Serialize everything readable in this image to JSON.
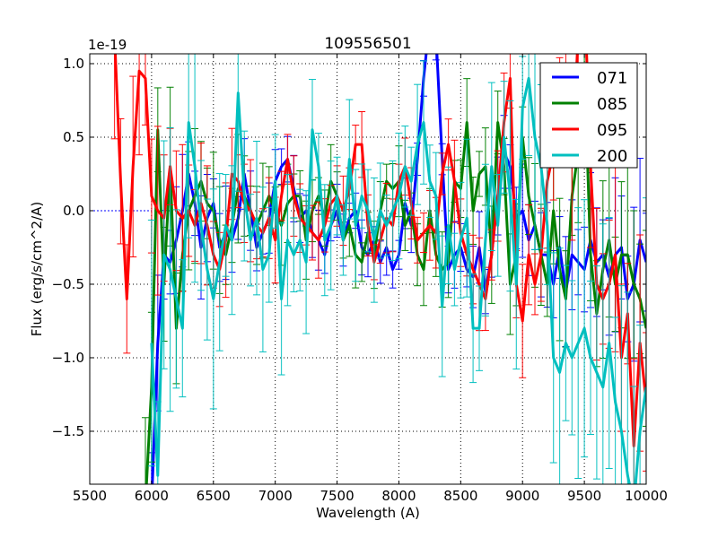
{
  "chart_data": {
    "type": "line",
    "title": "109556501",
    "xlabel": "Wavelength (A)",
    "ylabel": "Flux (erg/s/cm^2/A)",
    "y_scale_label": "1e-19",
    "xlim": [
      5500,
      10000
    ],
    "ylim": [
      -1.86,
      1.067
    ],
    "grid": true,
    "legend_position": "top-right",
    "x_ticks": [
      5500,
      6000,
      6500,
      7000,
      7500,
      8000,
      8500,
      9000,
      9500,
      10000
    ],
    "x_tick_labels": [
      "5500",
      "6000",
      "6500",
      "7000",
      "7500",
      "8000",
      "8500",
      "9000",
      "9500",
      "10000"
    ],
    "y_ticks": [
      1.0,
      0.5,
      0.0,
      -0.5,
      -1.0,
      -1.5
    ],
    "y_tick_labels": [
      "1.0",
      "0.5",
      "0.0",
      "−0.5",
      "−1.0",
      "−1.5"
    ],
    "series": [
      {
        "name": "071",
        "color": "#0000ff",
        "x_start": 6000,
        "x_step": 50,
        "values": [
          -2.0,
          -0.9,
          -0.3,
          -0.35,
          -0.2,
          0.0,
          0.25,
          0.05,
          -0.25,
          -0.05,
          0.05,
          -0.25,
          -0.15,
          -0.2,
          -0.05,
          0.25,
          0.0,
          -0.25,
          -0.15,
          -0.05,
          0.2,
          0.3,
          0.35,
          0.15,
          -0.05,
          0.0,
          -0.15,
          -0.2,
          -0.3,
          -0.1,
          0.0,
          -0.2,
          -0.05,
          0.0,
          -0.25,
          -0.3,
          -0.2,
          -0.35,
          -0.25,
          -0.4,
          -0.3,
          0.05,
          -0.1,
          0.35,
          0.9,
          1.3,
          1.2,
          0.35,
          -0.4,
          -0.3,
          -0.25,
          -0.4,
          -0.45,
          -0.25,
          -0.55,
          -0.3,
          0.1,
          0.4,
          0.3,
          -0.05,
          0.0,
          -0.2,
          -0.1,
          -0.3,
          -0.3,
          -0.5,
          -0.25,
          -0.55,
          -0.3,
          -0.35,
          -0.4,
          -0.2,
          -0.35,
          -0.3,
          -0.45,
          -0.3,
          -0.25,
          -0.6,
          -0.5,
          -0.2,
          -0.35
        ],
        "error": 0.2
      },
      {
        "name": "085",
        "color": "#008000",
        "x_start": 5950,
        "x_step": 50,
        "values": [
          -2.0,
          -1.2,
          0.55,
          -0.5,
          0.3,
          -0.8,
          -0.3,
          0.0,
          0.1,
          0.2,
          0.05,
          0.0,
          -0.2,
          -0.3,
          -0.1,
          0.15,
          0.1,
          0.0,
          -0.1,
          0.0,
          0.1,
          0.0,
          -0.1,
          0.05,
          0.1,
          0.1,
          -0.2,
          0.0,
          0.1,
          -0.05,
          0.2,
          0.1,
          -0.2,
          -0.1,
          -0.3,
          -0.35,
          -0.15,
          -0.3,
          0.0,
          0.2,
          0.15,
          0.2,
          -0.1,
          0.0,
          -0.3,
          -0.4,
          0.0,
          -0.3,
          -0.4,
          -0.35,
          0.2,
          0.15,
          0.6,
          0.0,
          0.25,
          0.3,
          -0.3,
          0.6,
          0.3,
          -0.5,
          -0.3,
          0.5,
          0.1,
          -0.1,
          -0.3,
          -0.5,
          0.0,
          -0.4,
          -0.6,
          0.1,
          0.4,
          1.0,
          -0.3,
          -0.7,
          -0.4,
          -0.2,
          -0.5,
          -0.3,
          -0.3,
          -0.5,
          -0.6,
          -0.8
        ],
        "error": 0.25
      },
      {
        "name": "095",
        "color": "#ff0000",
        "x_start": 5700,
        "x_step": 50,
        "values": [
          1.2,
          0.2,
          -0.6,
          0.3,
          0.95,
          0.9,
          0.1,
          0.0,
          -0.05,
          0.3,
          0.0,
          -0.05,
          0.0,
          -0.1,
          0.05,
          -0.1,
          -0.3,
          -0.4,
          -0.2,
          0.25,
          0.2,
          0.05,
          0.0,
          -0.1,
          -0.15,
          -0.05,
          -0.2,
          0.1,
          0.35,
          0.1,
          -0.05,
          -0.1,
          -0.15,
          -0.2,
          -0.1,
          0.05,
          0.1,
          0.0,
          0.15,
          0.45,
          0.45,
          -0.1,
          -0.35,
          -0.2,
          -0.05,
          -0.1,
          0.2,
          0.3,
          0.05,
          -0.2,
          -0.15,
          -0.1,
          -0.15,
          0.25,
          0.45,
          0.2,
          -0.15,
          -0.3,
          -0.4,
          -0.5,
          -0.6,
          -0.3,
          0.1,
          0.6,
          0.9,
          -0.5,
          -0.75,
          -0.3,
          -0.5,
          -0.3,
          0.2,
          0.4,
          0.8,
          0.9,
          0.3,
          1.2,
          1.5,
          0.3,
          -0.5,
          -0.6,
          -0.5,
          -0.3,
          -1.0,
          -0.7,
          -1.6,
          -0.9,
          -1.3
        ],
        "error": 0.25
      },
      {
        "name": "200",
        "color": "#00bfbf",
        "x_start": 6000,
        "x_step": 50,
        "values": [
          -0.9,
          -1.8,
          -0.3,
          -0.4,
          -0.6,
          -0.8,
          0.6,
          0.3,
          -0.1,
          -0.4,
          -0.6,
          -0.35,
          -0.1,
          -0.2,
          0.8,
          0.1,
          -0.2,
          -0.05,
          -0.4,
          -0.3,
          0.2,
          -0.6,
          -0.2,
          -0.3,
          -0.2,
          -0.35,
          0.55,
          0.3,
          -0.2,
          -0.1,
          0.1,
          -0.2,
          0.35,
          -0.1,
          0.1,
          0.0,
          -0.2,
          0.0,
          -0.1,
          0.0,
          0.1,
          0.3,
          0.2,
          0.45,
          0.6,
          0.2,
          0.1,
          -0.65,
          -0.1,
          -0.4,
          -0.2,
          -0.05,
          -0.8,
          -0.8,
          -0.2,
          0.3,
          -0.1,
          0.5,
          0.1,
          -0.5,
          0.7,
          0.9,
          0.5,
          0.3,
          -0.1,
          -1.0,
          -1.1,
          -0.9,
          -1.0,
          -0.9,
          -0.8,
          -1.0,
          -1.1,
          -1.2,
          -0.9,
          -1.3,
          -1.5,
          -1.8,
          -2.0,
          -1.5,
          -1.2
        ],
        "error": 0.45
      }
    ]
  }
}
